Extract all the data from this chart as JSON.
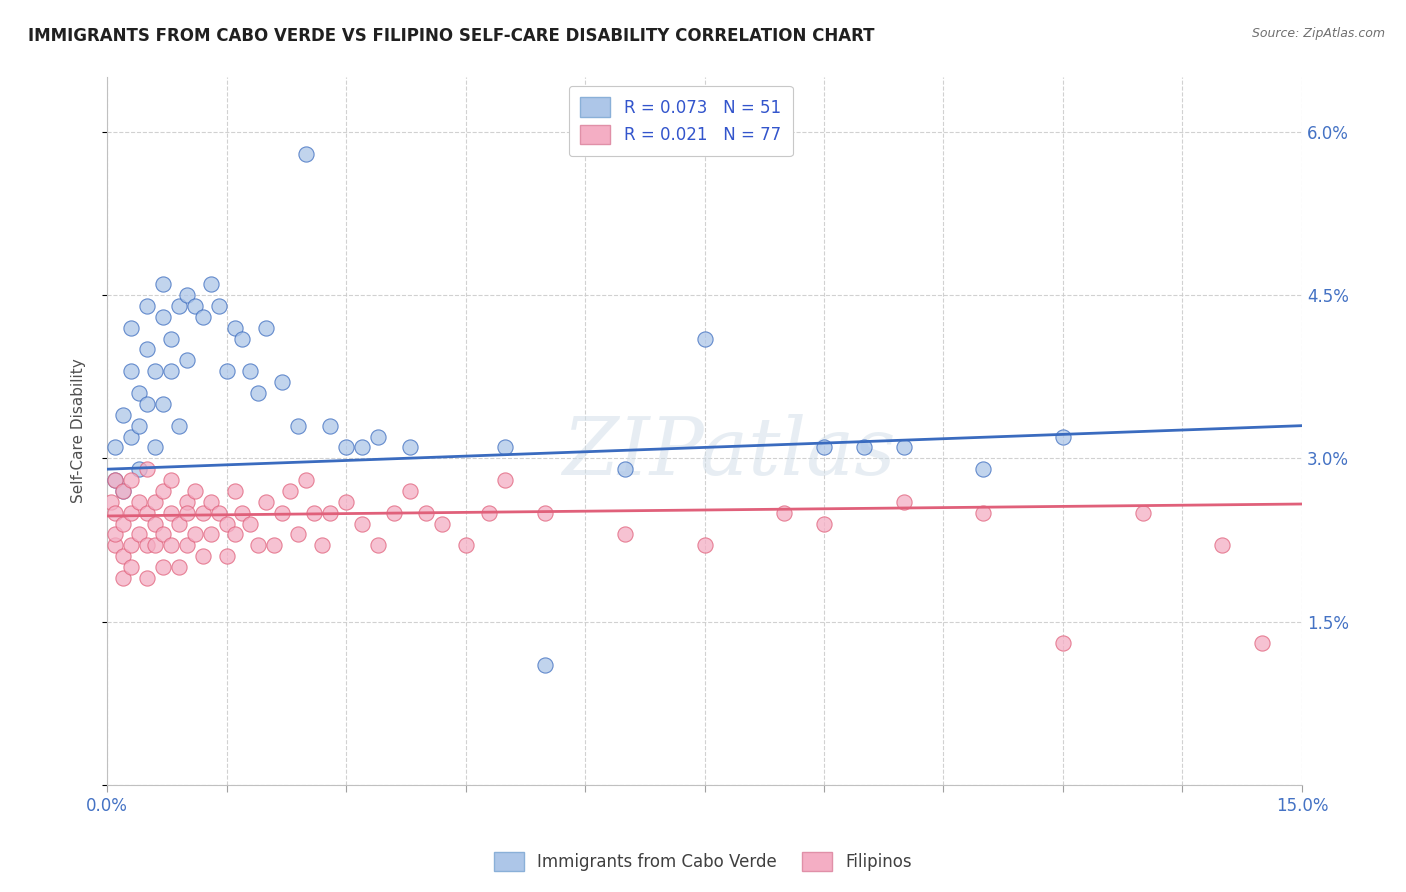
{
  "title": "IMMIGRANTS FROM CABO VERDE VS FILIPINO SELF-CARE DISABILITY CORRELATION CHART",
  "source": "Source: ZipAtlas.com",
  "ylabel": "Self-Care Disability",
  "xlim": [
    0.0,
    0.15
  ],
  "ylim": [
    0.0,
    0.065
  ],
  "ytick_positions": [
    0.0,
    0.015,
    0.03,
    0.045,
    0.06
  ],
  "ytick_labels": [
    "",
    "1.5%",
    "3.0%",
    "4.5%",
    "6.0%"
  ],
  "color_blue": "#adc6e8",
  "color_pink": "#f4aec4",
  "line_blue": "#3a6bbf",
  "line_pink": "#e0607a",
  "legend_text_color": "#3355cc",
  "watermark": "ZIPatlas",
  "cabo_verde_x": [
    0.001,
    0.001,
    0.002,
    0.002,
    0.003,
    0.003,
    0.003,
    0.004,
    0.004,
    0.004,
    0.005,
    0.005,
    0.005,
    0.006,
    0.006,
    0.007,
    0.007,
    0.007,
    0.008,
    0.008,
    0.009,
    0.009,
    0.01,
    0.01,
    0.011,
    0.012,
    0.013,
    0.014,
    0.015,
    0.016,
    0.017,
    0.018,
    0.019,
    0.02,
    0.022,
    0.024,
    0.025,
    0.028,
    0.03,
    0.032,
    0.034,
    0.038,
    0.05,
    0.055,
    0.065,
    0.075,
    0.09,
    0.095,
    0.1,
    0.11,
    0.12
  ],
  "cabo_verde_y": [
    0.031,
    0.028,
    0.034,
    0.027,
    0.032,
    0.038,
    0.042,
    0.029,
    0.036,
    0.033,
    0.04,
    0.035,
    0.044,
    0.038,
    0.031,
    0.043,
    0.035,
    0.046,
    0.038,
    0.041,
    0.044,
    0.033,
    0.045,
    0.039,
    0.044,
    0.043,
    0.046,
    0.044,
    0.038,
    0.042,
    0.041,
    0.038,
    0.036,
    0.042,
    0.037,
    0.033,
    0.058,
    0.033,
    0.031,
    0.031,
    0.032,
    0.031,
    0.031,
    0.011,
    0.029,
    0.041,
    0.031,
    0.031,
    0.031,
    0.029,
    0.032
  ],
  "filipino_x": [
    0.0005,
    0.001,
    0.001,
    0.001,
    0.001,
    0.002,
    0.002,
    0.002,
    0.002,
    0.003,
    0.003,
    0.003,
    0.003,
    0.004,
    0.004,
    0.005,
    0.005,
    0.005,
    0.005,
    0.006,
    0.006,
    0.006,
    0.007,
    0.007,
    0.007,
    0.008,
    0.008,
    0.008,
    0.009,
    0.009,
    0.01,
    0.01,
    0.01,
    0.011,
    0.011,
    0.012,
    0.012,
    0.013,
    0.013,
    0.014,
    0.015,
    0.015,
    0.016,
    0.016,
    0.017,
    0.018,
    0.019,
    0.02,
    0.021,
    0.022,
    0.023,
    0.024,
    0.025,
    0.026,
    0.027,
    0.028,
    0.03,
    0.032,
    0.034,
    0.036,
    0.038,
    0.04,
    0.042,
    0.045,
    0.048,
    0.05,
    0.055,
    0.065,
    0.075,
    0.085,
    0.09,
    0.1,
    0.11,
    0.12,
    0.13,
    0.14,
    0.145
  ],
  "filipino_y": [
    0.026,
    0.022,
    0.025,
    0.028,
    0.023,
    0.021,
    0.027,
    0.024,
    0.019,
    0.025,
    0.022,
    0.028,
    0.02,
    0.026,
    0.023,
    0.029,
    0.022,
    0.025,
    0.019,
    0.026,
    0.022,
    0.024,
    0.027,
    0.02,
    0.023,
    0.025,
    0.022,
    0.028,
    0.024,
    0.02,
    0.026,
    0.022,
    0.025,
    0.027,
    0.023,
    0.025,
    0.021,
    0.026,
    0.023,
    0.025,
    0.024,
    0.021,
    0.027,
    0.023,
    0.025,
    0.024,
    0.022,
    0.026,
    0.022,
    0.025,
    0.027,
    0.023,
    0.028,
    0.025,
    0.022,
    0.025,
    0.026,
    0.024,
    0.022,
    0.025,
    0.027,
    0.025,
    0.024,
    0.022,
    0.025,
    0.028,
    0.025,
    0.023,
    0.022,
    0.025,
    0.024,
    0.026,
    0.025,
    0.013,
    0.025,
    0.022,
    0.013
  ]
}
